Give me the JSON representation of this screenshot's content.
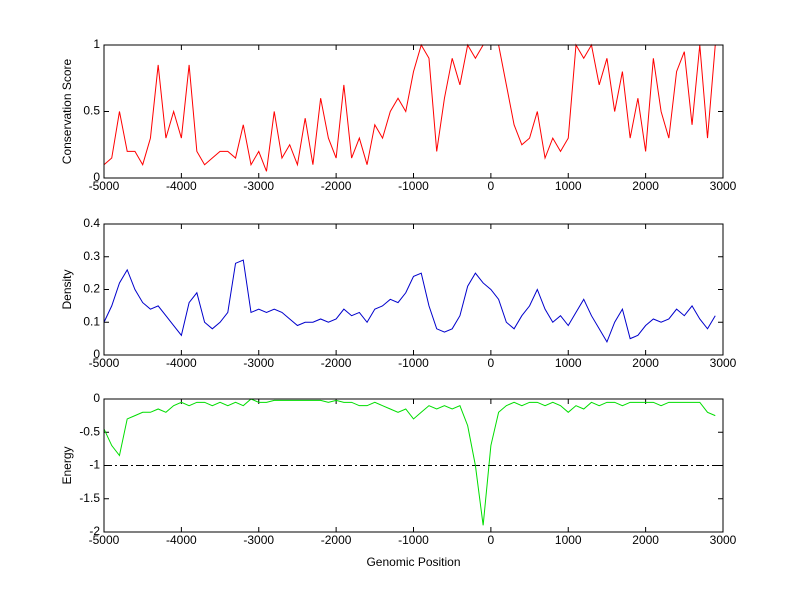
{
  "chart_data": [
    {
      "type": "line",
      "ylabel": "Conservation Score",
      "xlim": [
        -5000,
        3000
      ],
      "ylim": [
        0,
        1
      ],
      "xticks": [
        -5000,
        -4000,
        -3000,
        -2000,
        -1000,
        0,
        1000,
        2000,
        3000
      ],
      "yticks": [
        0,
        0.5,
        1
      ],
      "x": [
        -5000,
        -4900,
        -4800,
        -4700,
        -4600,
        -4500,
        -4400,
        -4300,
        -4200,
        -4100,
        -4000,
        -3900,
        -3800,
        -3700,
        -3600,
        -3500,
        -3400,
        -3300,
        -3200,
        -3100,
        -3000,
        -2900,
        -2800,
        -2700,
        -2600,
        -2500,
        -2400,
        -2300,
        -2200,
        -2100,
        -2000,
        -1900,
        -1800,
        -1700,
        -1600,
        -1500,
        -1400,
        -1300,
        -1200,
        -1100,
        -1000,
        -900,
        -800,
        -700,
        -600,
        -500,
        -400,
        -300,
        -200,
        -100,
        0,
        100,
        200,
        300,
        400,
        500,
        600,
        700,
        800,
        900,
        1000,
        1100,
        1200,
        1300,
        1400,
        1500,
        1600,
        1700,
        1800,
        1900,
        2000,
        2100,
        2200,
        2300,
        2400,
        2500,
        2600,
        2700,
        2800,
        2900
      ],
      "series": [
        {
          "color": "#ff0000",
          "values": [
            0.1,
            0.15,
            0.5,
            0.2,
            0.2,
            0.1,
            0.3,
            0.85,
            0.3,
            0.5,
            0.3,
            0.85,
            0.2,
            0.1,
            0.15,
            0.2,
            0.2,
            0.15,
            0.4,
            0.1,
            0.2,
            0.05,
            0.5,
            0.15,
            0.25,
            0.1,
            0.45,
            0.1,
            0.6,
            0.3,
            0.15,
            0.7,
            0.15,
            0.3,
            0.1,
            0.4,
            0.3,
            0.5,
            0.6,
            0.5,
            0.8,
            1,
            0.9,
            0.2,
            0.6,
            0.9,
            0.7,
            1,
            0.9,
            1,
            1,
            1,
            0.7,
            0.4,
            0.25,
            0.3,
            0.5,
            0.15,
            0.3,
            0.2,
            0.3,
            1,
            0.9,
            1,
            0.7,
            0.9,
            0.5,
            0.8,
            0.3,
            0.6,
            0.2,
            0.9,
            0.5,
            0.3,
            0.8,
            0.95,
            0.4,
            1,
            0.3,
            1
          ]
        }
      ]
    },
    {
      "type": "line",
      "ylabel": "Density",
      "xlim": [
        -5000,
        3000
      ],
      "ylim": [
        0,
        0.4
      ],
      "xticks": [
        -5000,
        -4000,
        -3000,
        -2000,
        -1000,
        0,
        1000,
        2000,
        3000
      ],
      "yticks": [
        0,
        0.1,
        0.2,
        0.3,
        0.4
      ],
      "x": [
        -5000,
        -4900,
        -4800,
        -4700,
        -4600,
        -4500,
        -4400,
        -4300,
        -4200,
        -4100,
        -4000,
        -3900,
        -3800,
        -3700,
        -3600,
        -3500,
        -3400,
        -3300,
        -3200,
        -3100,
        -3000,
        -2900,
        -2800,
        -2700,
        -2600,
        -2500,
        -2400,
        -2300,
        -2200,
        -2100,
        -2000,
        -1900,
        -1800,
        -1700,
        -1600,
        -1500,
        -1400,
        -1300,
        -1200,
        -1100,
        -1000,
        -900,
        -800,
        -700,
        -600,
        -500,
        -400,
        -300,
        -200,
        -100,
        0,
        100,
        200,
        300,
        400,
        500,
        600,
        700,
        800,
        900,
        1000,
        1100,
        1200,
        1300,
        1400,
        1500,
        1600,
        1700,
        1800,
        1900,
        2000,
        2100,
        2200,
        2300,
        2400,
        2500,
        2600,
        2700,
        2800,
        2900
      ],
      "series": [
        {
          "color": "#0000cc",
          "values": [
            0.1,
            0.15,
            0.22,
            0.26,
            0.2,
            0.16,
            0.14,
            0.15,
            0.12,
            0.09,
            0.06,
            0.16,
            0.19,
            0.1,
            0.08,
            0.1,
            0.13,
            0.28,
            0.29,
            0.13,
            0.14,
            0.13,
            0.14,
            0.13,
            0.11,
            0.09,
            0.1,
            0.1,
            0.11,
            0.1,
            0.11,
            0.14,
            0.12,
            0.13,
            0.1,
            0.14,
            0.15,
            0.17,
            0.16,
            0.19,
            0.24,
            0.25,
            0.15,
            0.08,
            0.07,
            0.08,
            0.12,
            0.21,
            0.25,
            0.22,
            0.2,
            0.17,
            0.1,
            0.08,
            0.12,
            0.15,
            0.2,
            0.14,
            0.1,
            0.12,
            0.09,
            0.13,
            0.17,
            0.12,
            0.08,
            0.04,
            0.1,
            0.14,
            0.05,
            0.06,
            0.09,
            0.11,
            0.1,
            0.11,
            0.14,
            0.12,
            0.15,
            0.11,
            0.08,
            0.12
          ]
        }
      ]
    },
    {
      "type": "line",
      "ylabel": "Energy",
      "xlabel": "Genomic Position",
      "xlim": [
        -5000,
        3000
      ],
      "ylim": [
        -2,
        0
      ],
      "xticks": [
        -5000,
        -4000,
        -3000,
        -2000,
        -1000,
        0,
        1000,
        2000,
        3000
      ],
      "yticks": [
        -2,
        -1.5,
        -1,
        -0.5,
        0
      ],
      "hline": -1,
      "x": [
        -5000,
        -4900,
        -4800,
        -4700,
        -4600,
        -4500,
        -4400,
        -4300,
        -4200,
        -4100,
        -4000,
        -3900,
        -3800,
        -3700,
        -3600,
        -3500,
        -3400,
        -3300,
        -3200,
        -3100,
        -3000,
        -2900,
        -2800,
        -2700,
        -2600,
        -2500,
        -2400,
        -2300,
        -2200,
        -2100,
        -2000,
        -1900,
        -1800,
        -1700,
        -1600,
        -1500,
        -1400,
        -1300,
        -1200,
        -1100,
        -1000,
        -900,
        -800,
        -700,
        -600,
        -500,
        -400,
        -300,
        -200,
        -100,
        0,
        100,
        200,
        300,
        400,
        500,
        600,
        700,
        800,
        900,
        1000,
        1100,
        1200,
        1300,
        1400,
        1500,
        1600,
        1700,
        1800,
        1900,
        2000,
        2100,
        2200,
        2300,
        2400,
        2500,
        2600,
        2700,
        2800,
        2900
      ],
      "series": [
        {
          "color": "#00dd00",
          "values": [
            -0.45,
            -0.7,
            -0.85,
            -0.3,
            -0.25,
            -0.2,
            -0.2,
            -0.15,
            -0.2,
            -0.1,
            -0.05,
            -0.1,
            -0.05,
            -0.05,
            -0.1,
            -0.05,
            -0.1,
            -0.05,
            -0.1,
            0,
            -0.05,
            -0.05,
            -0.02,
            -0.02,
            -0.02,
            -0.02,
            -0.02,
            -0.02,
            -0.02,
            -0.05,
            -0.02,
            -0.05,
            -0.05,
            -0.1,
            -0.1,
            -0.05,
            -0.1,
            -0.15,
            -0.2,
            -0.15,
            -0.3,
            -0.2,
            -0.1,
            -0.15,
            -0.1,
            -0.15,
            -0.1,
            -0.4,
            -1.0,
            -1.9,
            -0.7,
            -0.2,
            -0.1,
            -0.05,
            -0.1,
            -0.05,
            -0.05,
            -0.1,
            -0.05,
            -0.1,
            -0.2,
            -0.1,
            -0.15,
            -0.05,
            -0.1,
            -0.05,
            -0.05,
            -0.1,
            -0.05,
            -0.05,
            -0.05,
            -0.05,
            -0.1,
            -0.05,
            -0.05,
            -0.05,
            -0.05,
            -0.05,
            -0.2,
            -0.25
          ]
        }
      ]
    }
  ]
}
